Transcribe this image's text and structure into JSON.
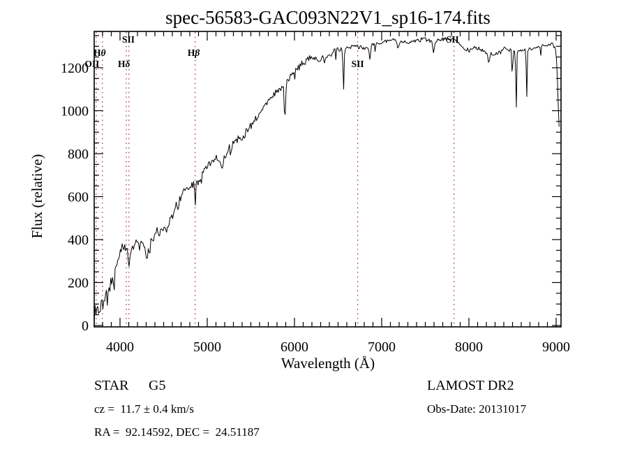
{
  "title": "spec-56583-GAC093N22V1_sp16-174.fits",
  "chart_data": {
    "type": "line",
    "title": "spec-56583-GAC093N22V1_sp16-174.fits",
    "xlabel": "Wavelength (Å)",
    "ylabel": "Flux (relative)",
    "xlim": [
      3704,
      9056
    ],
    "ylim": [
      -7,
      1369
    ],
    "x_ticks": [
      4000,
      5000,
      6000,
      7000,
      8000,
      9000
    ],
    "y_ticks": [
      0,
      200,
      400,
      600,
      800,
      1000,
      1200
    ],
    "x_minor_step": 100,
    "y_minor_step": 50,
    "grid": false,
    "legend": "none",
    "line_color": "#000000",
    "marker_line_color": "#aa2838",
    "spectral_lines": [
      {
        "label": "OII",
        "wavelength": 3727,
        "row": 2,
        "dx": -6
      },
      {
        "label": "Hθ",
        "wavelength": 3798,
        "row": 1,
        "dx": -4
      },
      {
        "label": "SII",
        "wavelength": 4072,
        "row": 0,
        "dx": 3
      },
      {
        "label": "Hδ",
        "wavelength": 4102,
        "row": 2,
        "dx": -7
      },
      {
        "label": "Hβ",
        "wavelength": 4861,
        "row": 1,
        "dx": -2
      },
      {
        "label": "SII",
        "wavelength": 6725,
        "row": 2,
        "dx": 0
      },
      {
        "label": "SII",
        "wavelength": 7830,
        "row": 0,
        "dx": -2
      }
    ],
    "continuum": [
      [
        3704,
        10
      ],
      [
        3706,
        120
      ],
      [
        3710,
        75
      ],
      [
        3720,
        60
      ],
      [
        3730,
        90
      ],
      [
        3740,
        75
      ],
      [
        3750,
        100
      ],
      [
        3760,
        80
      ],
      [
        3770,
        70
      ],
      [
        3780,
        95
      ],
      [
        3790,
        110
      ],
      [
        3800,
        120
      ],
      [
        3815,
        100
      ],
      [
        3830,
        115
      ],
      [
        3845,
        130
      ],
      [
        3860,
        150
      ],
      [
        3880,
        170
      ],
      [
        3900,
        195
      ],
      [
        3920,
        225
      ],
      [
        3933,
        220
      ],
      [
        3945,
        265
      ],
      [
        3960,
        300
      ],
      [
        3980,
        325
      ],
      [
        4000,
        345
      ],
      [
        4020,
        355
      ],
      [
        4040,
        360
      ],
      [
        4060,
        355
      ],
      [
        4080,
        350
      ],
      [
        4100,
        340
      ],
      [
        4120,
        348
      ],
      [
        4140,
        360
      ],
      [
        4160,
        372
      ],
      [
        4180,
        382
      ],
      [
        4200,
        390
      ],
      [
        4220,
        392
      ],
      [
        4250,
        395
      ],
      [
        4280,
        372
      ],
      [
        4300,
        360
      ],
      [
        4320,
        385
      ],
      [
        4340,
        390
      ],
      [
        4360,
        415
      ],
      [
        4380,
        420
      ],
      [
        4400,
        428
      ],
      [
        4430,
        435
      ],
      [
        4460,
        445
      ],
      [
        4490,
        452
      ],
      [
        4520,
        462
      ],
      [
        4550,
        480
      ],
      [
        4580,
        498
      ],
      [
        4610,
        522
      ],
      [
        4640,
        552
      ],
      [
        4670,
        580
      ],
      [
        4700,
        605
      ],
      [
        4730,
        622
      ],
      [
        4760,
        638
      ],
      [
        4790,
        650
      ],
      [
        4820,
        658
      ],
      [
        4850,
        660
      ],
      [
        4880,
        675
      ],
      [
        4910,
        695
      ],
      [
        4940,
        710
      ],
      [
        4970,
        725
      ],
      [
        5000,
        740
      ],
      [
        5030,
        758
      ],
      [
        5060,
        770
      ],
      [
        5090,
        778
      ],
      [
        5120,
        780
      ],
      [
        5150,
        776
      ],
      [
        5180,
        782
      ],
      [
        5210,
        795
      ],
      [
        5240,
        815
      ],
      [
        5270,
        835
      ],
      [
        5300,
        850
      ],
      [
        5330,
        860
      ],
      [
        5360,
        870
      ],
      [
        5390,
        878
      ],
      [
        5420,
        890
      ],
      [
        5450,
        905
      ],
      [
        5480,
        922
      ],
      [
        5510,
        938
      ],
      [
        5540,
        952
      ],
      [
        5570,
        968
      ],
      [
        5600,
        990
      ],
      [
        5630,
        1008
      ],
      [
        5660,
        1025
      ],
      [
        5690,
        1042
      ],
      [
        5720,
        1058
      ],
      [
        5750,
        1070
      ],
      [
        5780,
        1085
      ],
      [
        5810,
        1092
      ],
      [
        5840,
        1102
      ],
      [
        5870,
        1115
      ],
      [
        5900,
        1132
      ],
      [
        5930,
        1145
      ],
      [
        5960,
        1158
      ],
      [
        6000,
        1180
      ],
      [
        6040,
        1200
      ],
      [
        6080,
        1218
      ],
      [
        6120,
        1232
      ],
      [
        6160,
        1245
      ],
      [
        6200,
        1250
      ],
      [
        6240,
        1246
      ],
      [
        6280,
        1240
      ],
      [
        6320,
        1245
      ],
      [
        6360,
        1252
      ],
      [
        6400,
        1260
      ],
      [
        6440,
        1270
      ],
      [
        6480,
        1282
      ],
      [
        6520,
        1285
      ],
      [
        6560,
        1285
      ],
      [
        6600,
        1290
      ],
      [
        6640,
        1294
      ],
      [
        6680,
        1298
      ],
      [
        6720,
        1300
      ],
      [
        6760,
        1296
      ],
      [
        6800,
        1290
      ],
      [
        6840,
        1296
      ],
      [
        6880,
        1305
      ],
      [
        6920,
        1312
      ],
      [
        6960,
        1316
      ],
      [
        7000,
        1320
      ],
      [
        7060,
        1326
      ],
      [
        7120,
        1330
      ],
      [
        7180,
        1325
      ],
      [
        7240,
        1320
      ],
      [
        7300,
        1316
      ],
      [
        7360,
        1324
      ],
      [
        7420,
        1330
      ],
      [
        7480,
        1334
      ],
      [
        7540,
        1328
      ],
      [
        7600,
        1322
      ],
      [
        7660,
        1328
      ],
      [
        7720,
        1332
      ],
      [
        7780,
        1335
      ],
      [
        7840,
        1330
      ],
      [
        7880,
        1315
      ],
      [
        7920,
        1298
      ],
      [
        7960,
        1286
      ],
      [
        8000,
        1282
      ],
      [
        8050,
        1290
      ],
      [
        8100,
        1293
      ],
      [
        8150,
        1280
      ],
      [
        8200,
        1268
      ],
      [
        8250,
        1262
      ],
      [
        8300,
        1258
      ],
      [
        8350,
        1272
      ],
      [
        8400,
        1288
      ],
      [
        8450,
        1284
      ],
      [
        8500,
        1280
      ],
      [
        8550,
        1282
      ],
      [
        8600,
        1283
      ],
      [
        8650,
        1285
      ],
      [
        8700,
        1288
      ],
      [
        8750,
        1293
      ],
      [
        8800,
        1298
      ],
      [
        8850,
        1303
      ],
      [
        8900,
        1308
      ],
      [
        8950,
        1305
      ],
      [
        8980,
        1300
      ],
      [
        9000,
        1270
      ],
      [
        9015,
        1150
      ],
      [
        9030,
        950
      ],
      [
        9040,
        880
      ]
    ],
    "absorption_lines": [
      [
        3933,
        60,
        8
      ],
      [
        3968,
        50,
        8
      ],
      [
        4101,
        70,
        9
      ],
      [
        4227,
        45,
        6
      ],
      [
        4305,
        70,
        12
      ],
      [
        4340,
        85,
        8
      ],
      [
        4383,
        55,
        7
      ],
      [
        4455,
        40,
        6
      ],
      [
        4531,
        40,
        6
      ],
      [
        4668,
        45,
        6
      ],
      [
        4861,
        100,
        8
      ],
      [
        4920,
        40,
        6
      ],
      [
        5173,
        65,
        12
      ],
      [
        5270,
        45,
        8
      ],
      [
        5890,
        185,
        10
      ],
      [
        6122,
        40,
        6
      ],
      [
        6563,
        195,
        8
      ],
      [
        6867,
        65,
        10
      ],
      [
        7186,
        35,
        10
      ],
      [
        7594,
        50,
        12
      ],
      [
        8226,
        40,
        10
      ],
      [
        8498,
        135,
        7
      ],
      [
        8542,
        295,
        7
      ],
      [
        8662,
        235,
        7
      ]
    ],
    "noise_segments": [
      [
        3950,
        55
      ],
      [
        4400,
        30
      ],
      [
        5000,
        26
      ],
      [
        5600,
        22
      ],
      [
        6200,
        18
      ],
      [
        6900,
        15
      ],
      [
        9100,
        12
      ]
    ],
    "noise_seed": 11
  },
  "footer": {
    "left": {
      "object_type": "STAR",
      "subclass": "G5",
      "cz": "cz =  11.7 ± 0.4 km/s",
      "radec": "RA =  92.14592, DEC =  24.51187"
    },
    "right": {
      "survey": "LAMOST DR2",
      "obs_date": "Obs-Date: 20131017"
    }
  }
}
